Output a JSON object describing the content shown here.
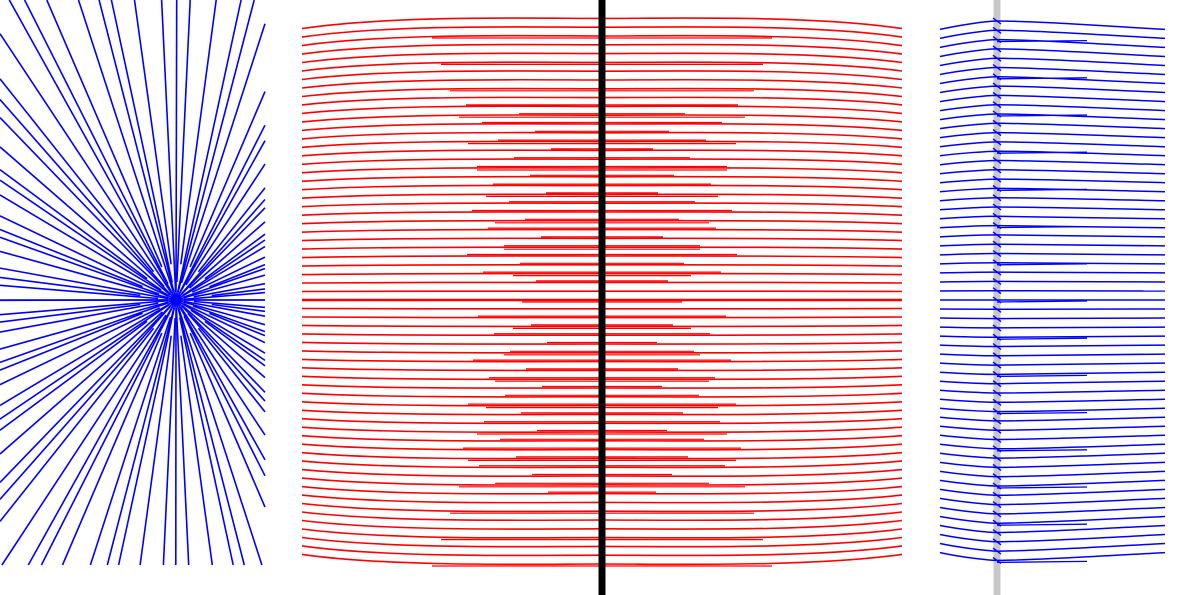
{
  "figure": {
    "background": "#ffffff",
    "panels": [
      {
        "id": "left-radial-field",
        "kind": "radial-lines",
        "color": "#0000ff",
        "description_in_pixels": "none"
      },
      {
        "id": "center-curved-field",
        "kind": "curved-field-lines",
        "color": "#ff0000",
        "axis_color": "#000000"
      },
      {
        "id": "right-branching-field",
        "kind": "branching-field-lines",
        "color": "#0000ff",
        "axis_color": "#c8c8c8"
      }
    ]
  }
}
